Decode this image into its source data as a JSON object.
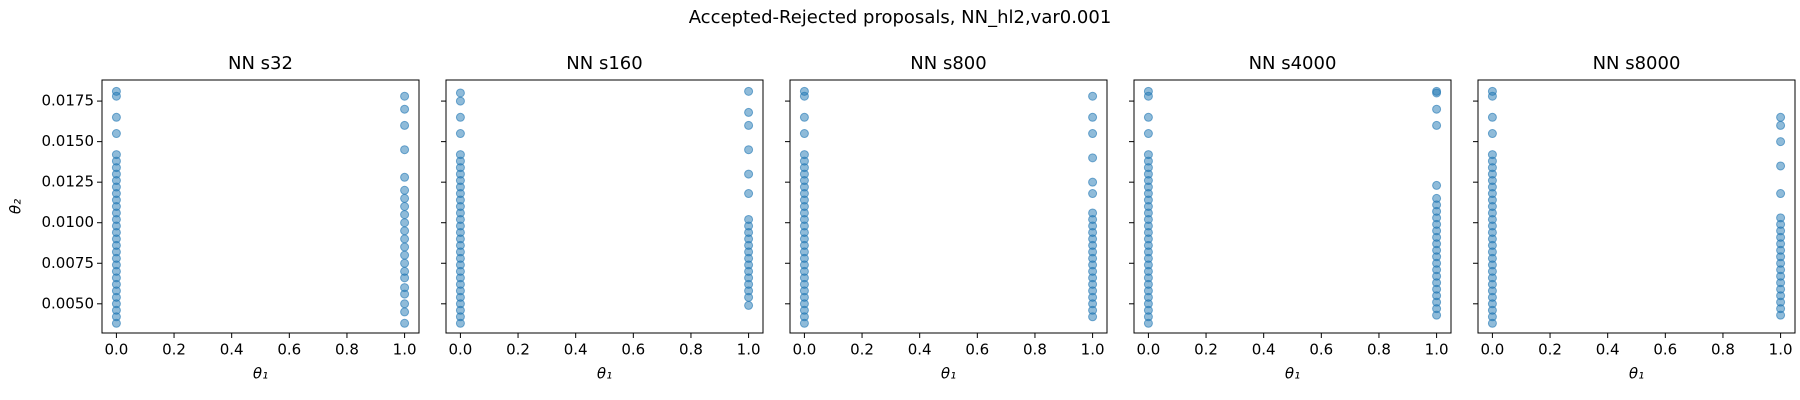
{
  "title": "Accepted-Rejected proposals, NN_hl2,var0.001",
  "chart_data": [
    {
      "type": "scatter",
      "title": "NN s32",
      "xlabel": "θ₁",
      "ylabel": "θ₂",
      "color": "#1f77b4",
      "xlim": [
        -0.05,
        1.05
      ],
      "ylim": [
        0.0032,
        0.0188
      ],
      "xticks": [
        {
          "value": 0,
          "label": "0.0"
        },
        0.2,
        0.4,
        0.6,
        0.8,
        {
          "value": 1,
          "label": "1.0"
        }
      ],
      "yticks": [
        {
          "value": 0.005,
          "label": "0.0050"
        },
        0.0075,
        {
          "value": 0.01,
          "label": "0.0100"
        },
        0.0125,
        {
          "value": 0.015,
          "label": "0.0150"
        },
        0.0175
      ],
      "x": [
        0,
        0,
        0,
        0,
        0,
        0,
        0,
        0,
        0,
        0,
        0,
        0,
        0,
        0,
        0,
        0,
        0,
        0,
        0,
        0,
        0,
        0,
        0,
        0,
        0,
        0,
        0,
        0,
        0,
        0,
        0,
        1,
        1,
        1,
        1,
        1,
        1,
        1,
        1,
        1,
        1,
        1,
        1,
        1,
        1,
        1,
        1,
        1,
        1,
        1,
        1,
        1,
        1
      ],
      "y": [
        0.0038,
        0.0042,
        0.0046,
        0.005,
        0.0054,
        0.0058,
        0.0062,
        0.0066,
        0.007,
        0.0074,
        0.0078,
        0.0082,
        0.0086,
        0.009,
        0.0094,
        0.0098,
        0.0102,
        0.0106,
        0.011,
        0.0114,
        0.0118,
        0.0122,
        0.0126,
        0.013,
        0.0134,
        0.0138,
        0.0142,
        0.0155,
        0.0165,
        0.0178,
        0.0181,
        0.0038,
        0.0045,
        0.005,
        0.0056,
        0.006,
        0.0066,
        0.007,
        0.0075,
        0.008,
        0.0085,
        0.009,
        0.0095,
        0.01,
        0.0105,
        0.011,
        0.0115,
        0.012,
        0.0128,
        0.0145,
        0.016,
        0.017,
        0.0178
      ]
    },
    {
      "type": "scatter",
      "title": "NN s160",
      "xlabel": "θ₁",
      "color": "#1f77b4",
      "xlim": [
        -0.05,
        1.05
      ],
      "ylim": [
        0.0032,
        0.0188
      ],
      "xticks": [
        {
          "value": 0,
          "label": "0.0"
        },
        0.2,
        0.4,
        0.6,
        0.8,
        {
          "value": 1,
          "label": "1.0"
        }
      ],
      "yticks": [
        0.005,
        0.0075,
        0.01,
        0.0125,
        0.015,
        0.0175
      ],
      "x": [
        0,
        0,
        0,
        0,
        0,
        0,
        0,
        0,
        0,
        0,
        0,
        0,
        0,
        0,
        0,
        0,
        0,
        0,
        0,
        0,
        0,
        0,
        0,
        0,
        0,
        0,
        0,
        0,
        0,
        0,
        0,
        1,
        1,
        1,
        1,
        1,
        1,
        1,
        1,
        1,
        1,
        1,
        1,
        1,
        1,
        1,
        1,
        1,
        1,
        1,
        1
      ],
      "y": [
        0.0038,
        0.0042,
        0.0046,
        0.005,
        0.0054,
        0.0058,
        0.0062,
        0.0066,
        0.007,
        0.0074,
        0.0078,
        0.0082,
        0.0086,
        0.009,
        0.0094,
        0.0098,
        0.0102,
        0.0106,
        0.011,
        0.0114,
        0.0118,
        0.0122,
        0.0126,
        0.013,
        0.0134,
        0.0138,
        0.0142,
        0.0155,
        0.0165,
        0.0175,
        0.018,
        0.0049,
        0.0054,
        0.0058,
        0.0062,
        0.0066,
        0.007,
        0.0074,
        0.0078,
        0.0082,
        0.0086,
        0.009,
        0.0094,
        0.0098,
        0.0102,
        0.0118,
        0.013,
        0.0145,
        0.016,
        0.0168,
        0.0181
      ]
    },
    {
      "type": "scatter",
      "title": "NN s800",
      "xlabel": "θ₁",
      "color": "#1f77b4",
      "xlim": [
        -0.05,
        1.05
      ],
      "ylim": [
        0.0032,
        0.0188
      ],
      "xticks": [
        {
          "value": 0,
          "label": "0.0"
        },
        0.2,
        0.4,
        0.6,
        0.8,
        {
          "value": 1,
          "label": "1.0"
        }
      ],
      "yticks": [
        0.005,
        0.0075,
        0.01,
        0.0125,
        0.015,
        0.0175
      ],
      "x": [
        0,
        0,
        0,
        0,
        0,
        0,
        0,
        0,
        0,
        0,
        0,
        0,
        0,
        0,
        0,
        0,
        0,
        0,
        0,
        0,
        0,
        0,
        0,
        0,
        0,
        0,
        0,
        0,
        0,
        0,
        0,
        1,
        1,
        1,
        1,
        1,
        1,
        1,
        1,
        1,
        1,
        1,
        1,
        1,
        1,
        1,
        1,
        1,
        1,
        1,
        1,
        1,
        1,
        1
      ],
      "y": [
        0.0038,
        0.0042,
        0.0046,
        0.005,
        0.0054,
        0.0058,
        0.0062,
        0.0066,
        0.007,
        0.0074,
        0.0078,
        0.0082,
        0.0086,
        0.009,
        0.0094,
        0.0098,
        0.0102,
        0.0106,
        0.011,
        0.0114,
        0.0118,
        0.0122,
        0.0126,
        0.013,
        0.0134,
        0.0138,
        0.0142,
        0.0155,
        0.0165,
        0.0178,
        0.0181,
        0.0042,
        0.0046,
        0.005,
        0.0054,
        0.0058,
        0.0062,
        0.0066,
        0.007,
        0.0074,
        0.0078,
        0.0082,
        0.0086,
        0.009,
        0.0094,
        0.0098,
        0.0102,
        0.0106,
        0.0118,
        0.0125,
        0.014,
        0.0155,
        0.0165,
        0.0178
      ]
    },
    {
      "type": "scatter",
      "title": "NN s4000",
      "xlabel": "θ₁",
      "color": "#1f77b4",
      "xlim": [
        -0.05,
        1.05
      ],
      "ylim": [
        0.0032,
        0.0188
      ],
      "xticks": [
        {
          "value": 0,
          "label": "0.0"
        },
        0.2,
        0.4,
        0.6,
        0.8,
        {
          "value": 1,
          "label": "1.0"
        }
      ],
      "yticks": [
        0.005,
        0.0075,
        0.01,
        0.0125,
        0.015,
        0.0175
      ],
      "x": [
        0,
        0,
        0,
        0,
        0,
        0,
        0,
        0,
        0,
        0,
        0,
        0,
        0,
        0,
        0,
        0,
        0,
        0,
        0,
        0,
        0,
        0,
        0,
        0,
        0,
        0,
        0,
        0,
        0,
        0,
        0,
        1,
        1,
        1,
        1,
        1,
        1,
        1,
        1,
        1,
        1,
        1,
        1,
        1,
        1,
        1,
        1,
        1,
        1,
        1,
        1,
        1,
        1,
        1,
        1
      ],
      "y": [
        0.0038,
        0.0042,
        0.0046,
        0.005,
        0.0054,
        0.0058,
        0.0062,
        0.0066,
        0.007,
        0.0074,
        0.0078,
        0.0082,
        0.0086,
        0.009,
        0.0094,
        0.0098,
        0.0102,
        0.0106,
        0.011,
        0.0114,
        0.0118,
        0.0122,
        0.0126,
        0.013,
        0.0134,
        0.0138,
        0.0142,
        0.0155,
        0.0165,
        0.0178,
        0.0181,
        0.0043,
        0.0047,
        0.0051,
        0.0055,
        0.0059,
        0.0063,
        0.0067,
        0.0071,
        0.0075,
        0.0079,
        0.0083,
        0.0087,
        0.0091,
        0.0095,
        0.0099,
        0.0103,
        0.0107,
        0.0111,
        0.0115,
        0.0123,
        0.016,
        0.017,
        0.018,
        0.0181
      ]
    },
    {
      "type": "scatter",
      "title": "NN s8000",
      "xlabel": "θ₁",
      "color": "#1f77b4",
      "xlim": [
        -0.05,
        1.05
      ],
      "ylim": [
        0.0032,
        0.0188
      ],
      "xticks": [
        {
          "value": 0,
          "label": "0.0"
        },
        0.2,
        0.4,
        0.6,
        0.8,
        {
          "value": 1,
          "label": "1.0"
        }
      ],
      "yticks": [
        0.005,
        0.0075,
        0.01,
        0.0125,
        0.015,
        0.0175
      ],
      "x": [
        0,
        0,
        0,
        0,
        0,
        0,
        0,
        0,
        0,
        0,
        0,
        0,
        0,
        0,
        0,
        0,
        0,
        0,
        0,
        0,
        0,
        0,
        0,
        0,
        0,
        0,
        0,
        0,
        0,
        0,
        0,
        1,
        1,
        1,
        1,
        1,
        1,
        1,
        1,
        1,
        1,
        1,
        1,
        1,
        1,
        1,
        1,
        1,
        1,
        1,
        1,
        1
      ],
      "y": [
        0.0038,
        0.0042,
        0.0046,
        0.005,
        0.0054,
        0.0058,
        0.0062,
        0.0066,
        0.007,
        0.0074,
        0.0078,
        0.0082,
        0.0086,
        0.009,
        0.0094,
        0.0098,
        0.0102,
        0.0106,
        0.011,
        0.0114,
        0.0118,
        0.0122,
        0.0126,
        0.013,
        0.0134,
        0.0138,
        0.0142,
        0.0155,
        0.0165,
        0.0178,
        0.0181,
        0.0043,
        0.0047,
        0.0051,
        0.0055,
        0.0059,
        0.0063,
        0.0067,
        0.0071,
        0.0075,
        0.0079,
        0.0083,
        0.0087,
        0.0091,
        0.0095,
        0.0099,
        0.0103,
        0.0118,
        0.0135,
        0.015,
        0.016,
        0.0165
      ]
    }
  ]
}
